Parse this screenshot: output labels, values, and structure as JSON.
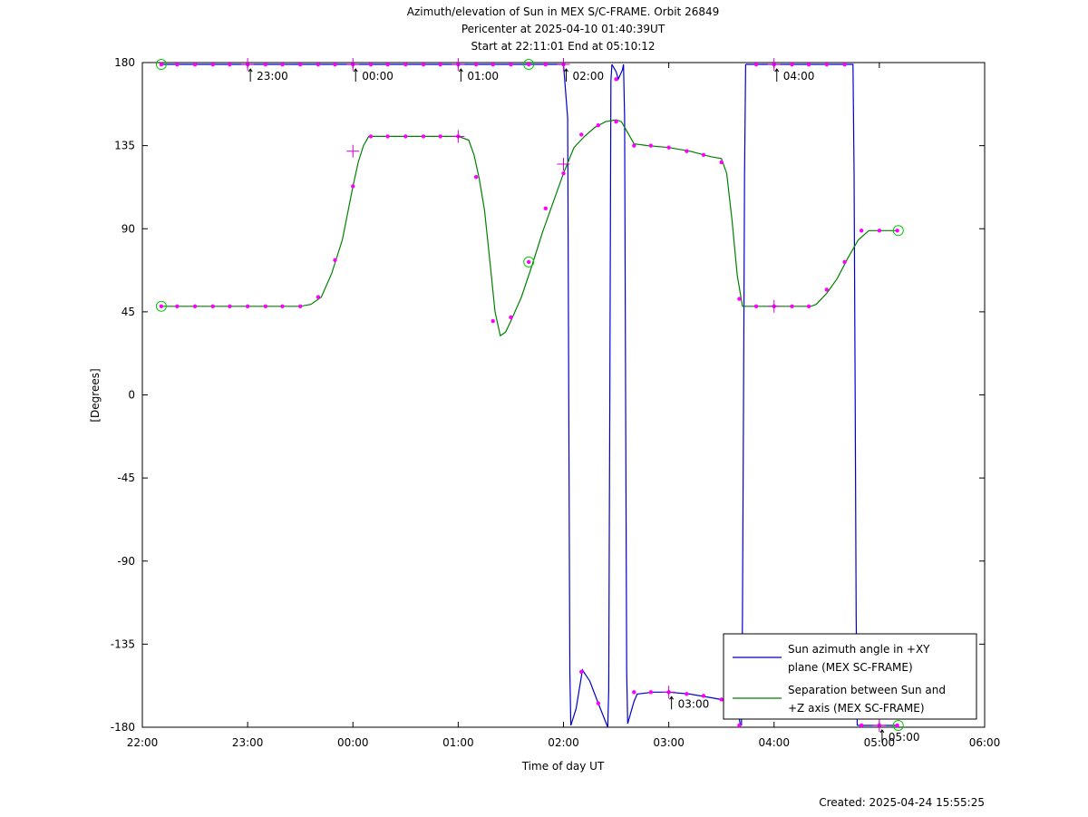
{
  "chart_data": {
    "type": "line",
    "title": [
      "Azimuth/elevation of Sun in MEX S/C-FRAME.  Orbit 26849",
      "Pericenter at 2025-04-10 01:40:39UT",
      "Start at 22:11:01 End at 05:10:12"
    ],
    "xlabel": "Time of day UT",
    "ylabel": "[Degrees]",
    "x_unit": "hours of day (22 = 22:00, 24 = 00:00, 30 = 06:00)",
    "xlim": [
      22,
      30
    ],
    "ylim": [
      -180,
      180
    ],
    "x_ticks": [
      22,
      23,
      24,
      25,
      26,
      27,
      28,
      29,
      30
    ],
    "x_tick_labels": [
      "22:00",
      "23:00",
      "00:00",
      "01:00",
      "02:00",
      "03:00",
      "04:00",
      "05:00",
      "06:00"
    ],
    "y_ticks": [
      180,
      135,
      90,
      45,
      0,
      -45,
      -90,
      -135,
      -180
    ],
    "y_tick_labels": [
      "180",
      "135",
      "90",
      "45",
      "0",
      "-45",
      "-90",
      "-135",
      "-180"
    ],
    "legend_position": "bottom-right",
    "legend": [
      {
        "lines": [
          "Sun azimuth angle in +XY",
          "plane (MEX SC-FRAME)"
        ],
        "color": "#0000cc"
      },
      {
        "lines": [
          "Separation between Sun and",
          "+Z axis (MEX SC-FRAME)"
        ],
        "color": "#008000"
      }
    ],
    "series": [
      {
        "color": "#0000cc",
        "segments": [
          [
            [
              22.18,
              179
            ],
            [
              23.0,
              179
            ],
            [
              24.0,
              179
            ],
            [
              25.0,
              179
            ],
            [
              25.7,
              179
            ],
            [
              26.0,
              179
            ],
            [
              26.04,
              150
            ],
            [
              26.05,
              0
            ],
            [
              26.06,
              -150
            ],
            [
              26.07,
              -179
            ]
          ],
          [
            [
              26.07,
              -179
            ],
            [
              26.12,
              -170
            ],
            [
              26.18,
              -149
            ],
            [
              26.25,
              -155
            ],
            [
              26.33,
              -167
            ],
            [
              26.42,
              -180
            ],
            [
              26.43,
              -160
            ],
            [
              26.44,
              0
            ],
            [
              26.45,
              170
            ],
            [
              26.46,
              179
            ]
          ],
          [
            [
              26.46,
              179
            ],
            [
              26.5,
              175
            ],
            [
              26.52,
              171
            ],
            [
              26.56,
              176
            ],
            [
              26.57,
              179
            ],
            [
              26.58,
              150
            ],
            [
              26.59,
              0
            ],
            [
              26.6,
              -150
            ],
            [
              26.61,
              -178
            ]
          ],
          [
            [
              26.61,
              -178
            ],
            [
              26.67,
              -166
            ],
            [
              26.7,
              -162
            ],
            [
              26.85,
              -161
            ],
            [
              27.0,
              -161
            ],
            [
              27.2,
              -162
            ],
            [
              27.4,
              -164
            ],
            [
              27.5,
              -165
            ],
            [
              27.6,
              -168
            ],
            [
              27.66,
              -172
            ],
            [
              27.68,
              -179
            ]
          ],
          [
            [
              27.69,
              -179
            ],
            [
              27.7,
              -120
            ],
            [
              27.71,
              0
            ],
            [
              27.72,
              120
            ],
            [
              27.73,
              179
            ]
          ],
          [
            [
              27.73,
              179
            ],
            [
              28.0,
              179
            ],
            [
              28.5,
              179
            ],
            [
              28.75,
              179
            ],
            [
              28.76,
              120
            ],
            [
              28.77,
              0
            ],
            [
              28.78,
              -120
            ],
            [
              28.79,
              -179
            ]
          ],
          [
            [
              28.79,
              -179
            ],
            [
              29.0,
              -179
            ],
            [
              29.18,
              -179
            ]
          ]
        ]
      },
      {
        "color": "#008000",
        "segments": [
          [
            [
              22.18,
              48
            ],
            [
              22.5,
              48
            ],
            [
              23.0,
              48
            ],
            [
              23.5,
              48
            ],
            [
              23.6,
              49
            ],
            [
              23.7,
              53
            ],
            [
              23.8,
              66
            ],
            [
              23.9,
              84
            ],
            [
              24.0,
              113
            ],
            [
              24.05,
              126
            ],
            [
              24.1,
              135
            ],
            [
              24.15,
              140
            ],
            [
              24.5,
              140
            ],
            [
              25.0,
              140
            ],
            [
              25.1,
              138
            ],
            [
              25.15,
              130
            ],
            [
              25.2,
              117
            ],
            [
              25.25,
              100
            ],
            [
              25.3,
              73
            ],
            [
              25.35,
              45
            ],
            [
              25.4,
              32
            ],
            [
              25.45,
              34
            ],
            [
              25.5,
              40
            ],
            [
              25.6,
              53
            ],
            [
              25.7,
              70
            ],
            [
              25.8,
              88
            ],
            [
              25.9,
              104
            ],
            [
              26.0,
              120
            ],
            [
              26.05,
              127
            ],
            [
              26.1,
              134
            ],
            [
              26.2,
              140
            ],
            [
              26.3,
              145
            ],
            [
              26.4,
              148
            ],
            [
              26.5,
              149
            ],
            [
              26.55,
              148
            ],
            [
              26.6,
              143
            ],
            [
              26.67,
              136
            ],
            [
              26.8,
              135
            ],
            [
              27.0,
              134
            ],
            [
              27.2,
              132
            ],
            [
              27.4,
              129
            ],
            [
              27.5,
              128
            ],
            [
              27.55,
              120
            ],
            [
              27.6,
              95
            ],
            [
              27.65,
              65
            ],
            [
              27.7,
              48
            ],
            [
              28.0,
              48
            ],
            [
              28.35,
              48
            ],
            [
              28.4,
              49
            ],
            [
              28.5,
              55
            ],
            [
              28.6,
              63
            ],
            [
              28.7,
              74
            ],
            [
              28.8,
              84
            ],
            [
              28.9,
              89
            ],
            [
              29.18,
              89
            ]
          ]
        ]
      }
    ],
    "sample_markers": [
      [
        22.18,
        179
      ],
      [
        22.33,
        179
      ],
      [
        22.5,
        179
      ],
      [
        22.67,
        179
      ],
      [
        22.83,
        179
      ],
      [
        23.0,
        179
      ],
      [
        23.17,
        179
      ],
      [
        23.33,
        179
      ],
      [
        23.5,
        179
      ],
      [
        23.67,
        179
      ],
      [
        23.83,
        179
      ],
      [
        24.0,
        179
      ],
      [
        24.17,
        179
      ],
      [
        24.33,
        179
      ],
      [
        24.5,
        179
      ],
      [
        24.67,
        179
      ],
      [
        24.83,
        179
      ],
      [
        25.0,
        179
      ],
      [
        25.17,
        179
      ],
      [
        25.33,
        179
      ],
      [
        25.5,
        179
      ],
      [
        25.67,
        179
      ],
      [
        25.83,
        179
      ],
      [
        26.0,
        179
      ],
      [
        26.17,
        -150
      ],
      [
        26.33,
        -167
      ],
      [
        26.5,
        171
      ],
      [
        26.67,
        -161
      ],
      [
        26.83,
        -161
      ],
      [
        27.0,
        -161
      ],
      [
        27.17,
        -162
      ],
      [
        27.33,
        -163
      ],
      [
        27.5,
        -165
      ],
      [
        27.67,
        -179
      ],
      [
        27.83,
        179
      ],
      [
        28.0,
        179
      ],
      [
        28.17,
        179
      ],
      [
        28.33,
        179
      ],
      [
        28.5,
        179
      ],
      [
        28.67,
        179
      ],
      [
        28.83,
        -179
      ],
      [
        29.0,
        -179
      ],
      [
        29.17,
        -179
      ],
      [
        22.18,
        48
      ],
      [
        22.33,
        48
      ],
      [
        22.5,
        48
      ],
      [
        22.67,
        48
      ],
      [
        22.83,
        48
      ],
      [
        23.0,
        48
      ],
      [
        23.17,
        48
      ],
      [
        23.33,
        48
      ],
      [
        23.5,
        48
      ],
      [
        23.67,
        53
      ],
      [
        23.83,
        73
      ],
      [
        24.0,
        113
      ],
      [
        24.17,
        140
      ],
      [
        24.33,
        140
      ],
      [
        24.5,
        140
      ],
      [
        24.67,
        140
      ],
      [
        24.83,
        140
      ],
      [
        25.0,
        140
      ],
      [
        25.17,
        118
      ],
      [
        25.33,
        40
      ],
      [
        25.5,
        42
      ],
      [
        25.67,
        72
      ],
      [
        25.83,
        101
      ],
      [
        26.0,
        120
      ],
      [
        26.17,
        141
      ],
      [
        26.33,
        146
      ],
      [
        26.5,
        148
      ],
      [
        26.67,
        135
      ],
      [
        26.83,
        135
      ],
      [
        27.0,
        134
      ],
      [
        27.17,
        132
      ],
      [
        27.33,
        130
      ],
      [
        27.5,
        126
      ],
      [
        27.67,
        52
      ],
      [
        27.83,
        48
      ],
      [
        28.0,
        48
      ],
      [
        28.17,
        48
      ],
      [
        28.33,
        48
      ],
      [
        28.5,
        57
      ],
      [
        28.67,
        72
      ],
      [
        28.83,
        89
      ],
      [
        29.0,
        89
      ],
      [
        29.17,
        89
      ]
    ],
    "hour_markers": [
      [
        23.0,
        179
      ],
      [
        24.0,
        179
      ],
      [
        25.0,
        179
      ],
      [
        26.0,
        179
      ],
      [
        28.0,
        179
      ],
      [
        24.0,
        132
      ],
      [
        26.0,
        125
      ],
      [
        27.0,
        -161
      ],
      [
        25.0,
        140
      ],
      [
        28.0,
        48
      ],
      [
        29.0,
        -179
      ]
    ],
    "circle_markers": [
      [
        22.18,
        179
      ],
      [
        22.18,
        48
      ],
      [
        25.67,
        179
      ],
      [
        25.67,
        72
      ],
      [
        29.18,
        89
      ],
      [
        29.18,
        -179
      ]
    ],
    "annotations": [
      {
        "text": "23:00",
        "x": 23.0,
        "y": 179
      },
      {
        "text": "00:00",
        "x": 24.0,
        "y": 179
      },
      {
        "text": "01:00",
        "x": 25.0,
        "y": 179
      },
      {
        "text": "02:00",
        "x": 26.0,
        "y": 179
      },
      {
        "text": "04:00",
        "x": 28.0,
        "y": 179
      },
      {
        "text": "03:00",
        "x": 27.0,
        "y": -161
      },
      {
        "text": "05:00",
        "x": 29.0,
        "y": -179
      }
    ],
    "footer": "Created: 2025-04-24 15:55:25"
  }
}
